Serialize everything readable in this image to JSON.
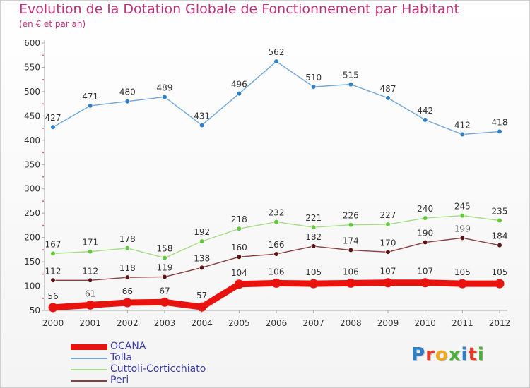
{
  "header": {
    "title": "Evolution de la Dotation Globale de Fonctionnement par Habitant",
    "subtitle": "(en € et par an)"
  },
  "logo": {
    "text": "Proxiti",
    "letters": [
      "P",
      "r",
      "o",
      "x",
      "i",
      "t",
      "i"
    ],
    "colors": [
      "#2f7fc8",
      "#e53a2a",
      "#f2a81d",
      "#4fae3a",
      "#2f7fc8",
      "#e53a2a",
      "#4fae3a"
    ]
  },
  "chart_data": {
    "type": "line",
    "title": "Evolution de la Dotation Globale de Fonctionnement par Habitant",
    "subtitle": "(en € et par an)",
    "xlabel": "",
    "ylabel": "",
    "x": [
      "2000",
      "2001",
      "2002",
      "2003",
      "2004",
      "2005",
      "2006",
      "2007",
      "2008",
      "2009",
      "2010",
      "2011",
      "2012"
    ],
    "ylim": [
      50,
      600
    ],
    "yticks": [
      "50",
      "100",
      "150",
      "200",
      "250",
      "300",
      "350",
      "400",
      "450",
      "500",
      "550",
      "600"
    ],
    "grid": false,
    "legend_position": "bottom-left",
    "series": [
      {
        "name": "OCANA",
        "values": [
          56,
          61,
          66,
          67,
          57,
          104,
          106,
          105,
          106,
          107,
          107,
          105,
          105
        ],
        "labels": [
          "56",
          "61",
          "66",
          "67",
          "57",
          "104",
          "106",
          "105",
          "106",
          "107",
          "107",
          "105",
          "105"
        ],
        "color": "#e8120e",
        "marker_color": "#e8120e",
        "emphasis": true
      },
      {
        "name": "Tolla",
        "values": [
          427,
          471,
          480,
          489,
          431,
          496,
          562,
          510,
          515,
          487,
          442,
          412,
          418
        ],
        "labels": [
          "427",
          "471",
          "480",
          "489",
          "431",
          "496",
          "562",
          "510",
          "515",
          "487",
          "442",
          "412",
          "418"
        ],
        "color": "#6fa7d8",
        "marker_color": "#2e7fc4",
        "emphasis": false
      },
      {
        "name": "Cuttoli-Corticchiato",
        "values": [
          167,
          171,
          178,
          158,
          192,
          218,
          232,
          221,
          226,
          227,
          240,
          245,
          235
        ],
        "labels": [
          "167",
          "171",
          "178",
          "158",
          "192",
          "218",
          "232",
          "221",
          "226",
          "227",
          "240",
          "245",
          "235"
        ],
        "color": "#a5dd86",
        "marker_color": "#62c93c",
        "emphasis": false
      },
      {
        "name": "Peri",
        "values": [
          112,
          112,
          118,
          119,
          138,
          160,
          166,
          182,
          174,
          170,
          190,
          199,
          184
        ],
        "labels": [
          "112",
          "112",
          "118",
          "119",
          "138",
          "160",
          "166",
          "182",
          "174",
          "170",
          "190",
          "199",
          "184"
        ],
        "color": "#8c3f3f",
        "marker_color": "#5e1414",
        "emphasis": false
      }
    ]
  }
}
